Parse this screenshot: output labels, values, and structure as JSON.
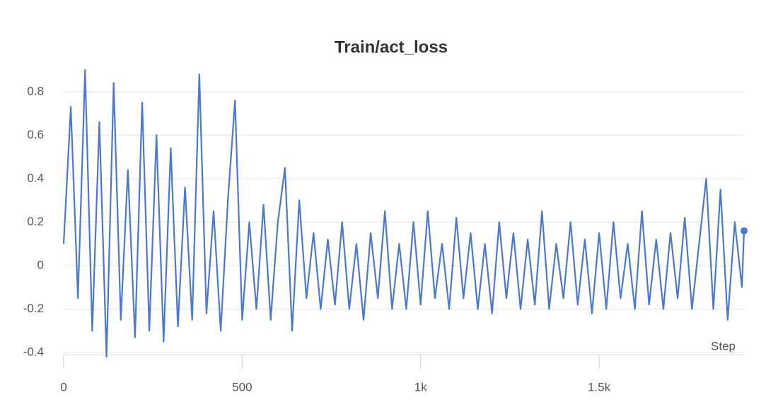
{
  "chart_data": {
    "type": "line",
    "title": "Train/act_loss",
    "x_label": "Step",
    "x": [
      0,
      20,
      40,
      60,
      80,
      100,
      120,
      140,
      160,
      180,
      200,
      220,
      240,
      260,
      280,
      300,
      320,
      340,
      360,
      380,
      400,
      420,
      440,
      460,
      480,
      500,
      520,
      540,
      560,
      580,
      600,
      620,
      640,
      660,
      680,
      700,
      720,
      740,
      760,
      780,
      800,
      820,
      840,
      860,
      880,
      900,
      920,
      940,
      960,
      980,
      1000,
      1020,
      1040,
      1060,
      1080,
      1100,
      1120,
      1140,
      1160,
      1180,
      1200,
      1220,
      1240,
      1260,
      1280,
      1300,
      1320,
      1340,
      1360,
      1380,
      1400,
      1420,
      1440,
      1460,
      1480,
      1500,
      1520,
      1540,
      1560,
      1580,
      1600,
      1620,
      1640,
      1660,
      1680,
      1700,
      1720,
      1740,
      1760,
      1780,
      1800,
      1820,
      1840,
      1860,
      1880,
      1900,
      1906
    ],
    "series": [
      {
        "color": "#4a78d4",
        "values": [
          0.1,
          0.73,
          -0.15,
          0.9,
          -0.3,
          0.66,
          -0.42,
          0.84,
          -0.25,
          0.44,
          -0.33,
          0.75,
          -0.3,
          0.6,
          -0.35,
          0.54,
          -0.28,
          0.36,
          -0.25,
          0.88,
          -0.22,
          0.25,
          -0.3,
          0.3,
          0.76,
          -0.25,
          0.2,
          -0.2,
          0.28,
          -0.25,
          0.2,
          0.45,
          -0.3,
          0.3,
          -0.15,
          0.15,
          -0.2,
          0.12,
          -0.18,
          0.2,
          -0.2,
          0.1,
          -0.25,
          0.15,
          -0.15,
          0.25,
          -0.2,
          0.1,
          -0.2,
          0.2,
          -0.18,
          0.25,
          -0.15,
          0.1,
          -0.2,
          0.22,
          -0.15,
          0.15,
          -0.2,
          0.1,
          -0.22,
          0.2,
          -0.15,
          0.15,
          -0.2,
          0.12,
          -0.18,
          0.25,
          -0.2,
          0.1,
          -0.15,
          0.2,
          -0.18,
          0.12,
          -0.22,
          0.15,
          -0.2,
          0.2,
          -0.15,
          0.1,
          -0.2,
          0.25,
          -0.18,
          0.12,
          -0.2,
          0.15,
          -0.15,
          0.22,
          -0.2,
          0.1,
          0.4,
          -0.2,
          0.35,
          -0.25,
          0.2,
          -0.1,
          0.16
        ]
      }
    ],
    "xlim": [
      0,
      1906
    ],
    "ylim": [
      -0.4,
      0.9
    ],
    "xticks": [
      0,
      500,
      {
        "value": 1000,
        "label": "1k"
      },
      {
        "value": 1500,
        "label": "1.5k"
      }
    ],
    "yticks": [
      -0.4,
      -0.2,
      0,
      0.2,
      0.4,
      0.6,
      0.8
    ],
    "grid": true
  }
}
